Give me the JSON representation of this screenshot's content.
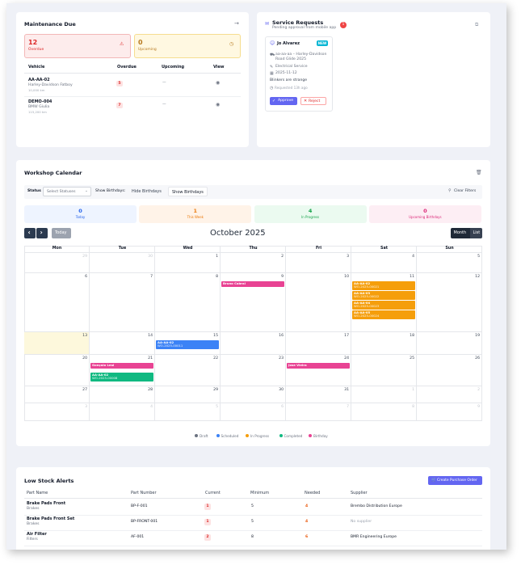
{
  "maintenance": {
    "title": "Maintenance Due",
    "stats": [
      {
        "value": 12,
        "label": "Overdue"
      },
      {
        "value": 0,
        "label": "Upcoming"
      }
    ],
    "headers": [
      "Vehicle",
      "Overdue",
      "Upcoming",
      "View"
    ],
    "rows": [
      {
        "plate": "AA-AA-02",
        "model": "Harley-Davidson Fatboy",
        "km": "10,000 km",
        "overdue": 5,
        "upcoming": "—"
      },
      {
        "plate": "DEMO-004",
        "model": "BMW Giulia",
        "km": "115,200 km",
        "overdue": 7,
        "upcoming": "—"
      }
    ]
  },
  "service_requests": {
    "title": "Service Requests",
    "subtitle": "Pending approval from mobile app",
    "count": 1,
    "request": {
      "name": "Jo Alvarez",
      "badge": "NEW",
      "vehicle": "aa-aa-aa – Harley-Davidson Road Glide 2025",
      "service": "Electrical Service",
      "date": "2025-11-12",
      "note": "Blinkers are strange",
      "time": "Requested 13h ago",
      "approve": "Approve",
      "reject": "Reject"
    }
  },
  "calendar": {
    "title": "Workshop Calendar",
    "filters": {
      "status_label": "Status",
      "status_placeholder": "Select Statuses",
      "birthdays_label": "Show Birthdays:",
      "hide": "Hide Birthdays",
      "show": "Show Birthdays",
      "clear": "Clear Filters"
    },
    "stats": [
      {
        "value": 0,
        "label": "Today",
        "color": "#2563eb",
        "bg": "#eef4ff"
      },
      {
        "value": 1,
        "label": "This Week",
        "color": "#ea7a0c",
        "bg": "#fff3e8"
      },
      {
        "value": 4,
        "label": "In Progress",
        "color": "#16a34a",
        "bg": "#ebfaf0"
      },
      {
        "value": 0,
        "label": "Upcoming Birthdays",
        "color": "#db2777",
        "bg": "#fdeef4"
      }
    ],
    "today_button": "Today",
    "month": "October 2025",
    "views": [
      "Month",
      "List"
    ],
    "weekdays": [
      "Mon",
      "Tue",
      "Wed",
      "Thu",
      "Fri",
      "Sat",
      "Sun"
    ],
    "weeks": [
      [
        {
          "day": 29
        },
        {
          "day": 30
        },
        {
          "day": 1
        },
        {
          "day": 2
        },
        {
          "day": 3
        },
        {
          "day": 4
        },
        {
          "day": 5
        }
      ],
      [
        {
          "day": 6
        },
        {
          "day": 7
        },
        {
          "day": 8
        },
        {
          "day": 9,
          "events": [
            {
              "title": "Bruno Cabral",
              "color": "#e84393"
            }
          ]
        },
        {
          "day": 10
        },
        {
          "day": 11,
          "events": [
            {
              "title": "AA-AA-02",
              "code": "WO-2025-00021",
              "color": "#f59e0b"
            },
            {
              "title": "AA-AA-03",
              "code": "WO-2025-00022",
              "color": "#f59e0b"
            },
            {
              "title": "AA-AA-04",
              "code": "WO-2025-00023",
              "color": "#f59e0b"
            },
            {
              "title": "AA-AA-05",
              "code": "WO-2025-00024",
              "color": "#f59e0b"
            }
          ]
        },
        {
          "day": 12
        }
      ],
      [
        {
          "day": 13
        },
        {
          "day": 14
        },
        {
          "day": 15,
          "events": [
            {
              "title": "AA-AA-02",
              "code": "WO-2025-00011",
              "color": "#3b82f6"
            }
          ]
        },
        {
          "day": 16
        },
        {
          "day": 17
        },
        {
          "day": 18
        },
        {
          "day": 19
        }
      ],
      [
        {
          "day": 20
        },
        {
          "day": 21,
          "events": [
            {
              "title": "Gonçalo Leal",
              "color": "#e84393"
            },
            {
              "title": "AA-AA-02",
              "code": "WO-2025-00008",
              "color": "#10b981"
            }
          ]
        },
        {
          "day": 22
        },
        {
          "day": 23
        },
        {
          "day": 24,
          "events": [
            {
              "title": "Jose Vieira",
              "color": "#e84393"
            }
          ]
        },
        {
          "day": 25
        },
        {
          "day": 26
        }
      ],
      [
        {
          "day": 27
        },
        {
          "day": 28
        },
        {
          "day": 29
        },
        {
          "day": 30
        },
        {
          "day": 31
        },
        {
          "day": 1
        },
        {
          "day": 2
        }
      ],
      [
        {
          "day": 3
        },
        {
          "day": 4
        },
        {
          "day": 5
        },
        {
          "day": 6
        },
        {
          "day": 7
        },
        {
          "day": 8
        },
        {
          "day": 9
        }
      ]
    ],
    "legend": [
      {
        "name": "Draft",
        "color": "#6b7280"
      },
      {
        "name": "Scheduled",
        "color": "#3b82f6"
      },
      {
        "name": "In Progress",
        "color": "#f59e0b"
      },
      {
        "name": "Completed",
        "color": "#10b981"
      },
      {
        "name": "Birthday",
        "color": "#e84393"
      }
    ]
  },
  "low_stock": {
    "title": "Low Stock Alerts",
    "button": "Create Purchase Order",
    "headers": [
      "Part Name",
      "Part Number",
      "Current",
      "Minimum",
      "Needed",
      "Supplier"
    ],
    "rows": [
      {
        "name": "Brake Pads Front",
        "category": "Brakes",
        "number": "BP-F-001",
        "current": 1,
        "minimum": 5,
        "needed": 4,
        "supplier": "Brembo Distribution Europe"
      },
      {
        "name": "Brake Pads Front Set",
        "category": "Brakes",
        "number": "BP-FRONT-001",
        "current": 1,
        "minimum": 5,
        "needed": 4,
        "supplier": "No supplier"
      },
      {
        "name": "Air Filter",
        "category": "Filters",
        "number": "AF-001",
        "current": 2,
        "minimum": 8,
        "needed": 6,
        "supplier": "BMR Engineering Europe"
      }
    ]
  }
}
